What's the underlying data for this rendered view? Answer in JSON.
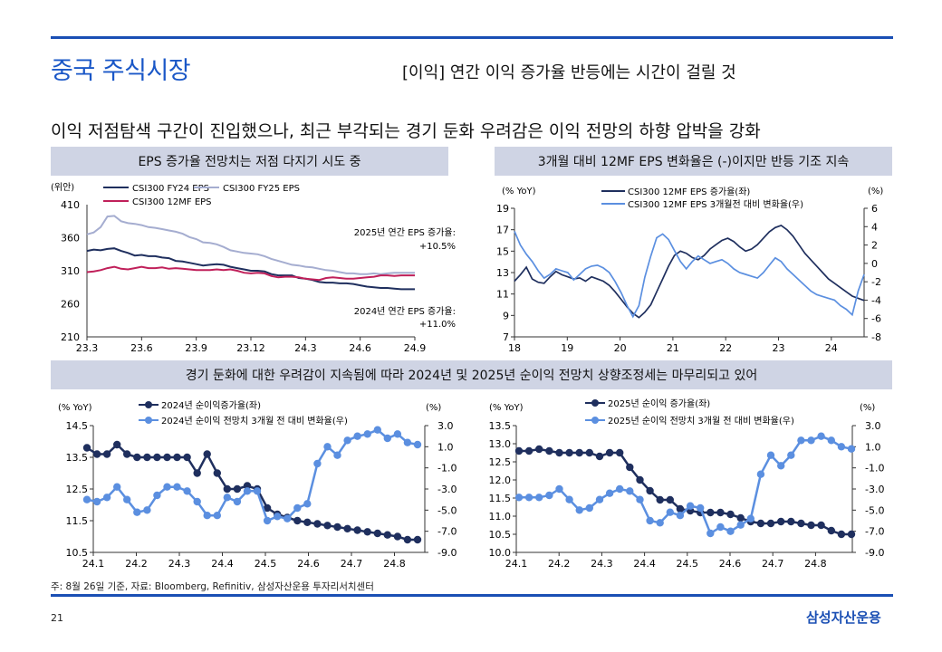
{
  "header": {
    "section_title": "중국 주식시장",
    "page_subtitle": "[이익] 연간 이익 증가율 반등에는 시간이 걸릴 것",
    "headline": "이익 저점탐색 구간이 진입했으나, 최근 부각되는 경기 둔화 우려감은 이익 전망의 하향 압박을 강화"
  },
  "panels": {
    "p1_title": "EPS 증가율 전망치는 저점 다지기 시도 중",
    "p2_title": "3개월 대비 12MF EPS 변화율은 (-)이지만 반등 기조 지속",
    "bottom_title": "경기 둔화에 대한 우려감이 지속됨에 따라 2024년 및 2025년 순이익 전망치 상향조정세는 마무리되고 있어"
  },
  "footer": {
    "footnote": "주: 8월 26일 기준, 자료: Bloomberg, Refinitiv, 삼성자산운용 투자리서치센터",
    "page_number": "21",
    "brand": "삼성자산운용"
  },
  "colors": {
    "rule": "#1a4fb4",
    "navy": "#1f2f5e",
    "lightblue": "#a5add0",
    "magenta": "#c0205a",
    "blue": "#5b8fe0"
  },
  "chart_data": [
    {
      "id": "c1",
      "type": "line",
      "unit_label": "(위안)",
      "ylim": [
        210,
        410
      ],
      "yticks": [
        210,
        260,
        310,
        360,
        410
      ],
      "xticks": [
        "23.3",
        "23.6",
        "23.9",
        "23.12",
        "24.3",
        "24.6",
        "24.9"
      ],
      "annotations": [
        "2025년 연간 EPS 증가율:",
        "+10.5%",
        "2024년 연간 EPS 증가율:",
        "+11.0%"
      ],
      "series": [
        {
          "name": "CSI300 FY24 EPS",
          "color": "#1f2f5e",
          "values": [
            340,
            342,
            341,
            343,
            344,
            340,
            337,
            333,
            334,
            332,
            332,
            330,
            329,
            325,
            324,
            322,
            320,
            318,
            319,
            320,
            319,
            316,
            314,
            312,
            310,
            310,
            309,
            305,
            303,
            303,
            303,
            299,
            298,
            296,
            293,
            292,
            292,
            291,
            291,
            290,
            288,
            286,
            285,
            284,
            284,
            283,
            282,
            282,
            282
          ]
        },
        {
          "name": "CSI300 FY25 EPS",
          "color": "#a5add0",
          "values": [
            365,
            368,
            376,
            392,
            393,
            385,
            382,
            381,
            379,
            376,
            375,
            373,
            371,
            369,
            366,
            361,
            358,
            353,
            352,
            350,
            346,
            341,
            339,
            337,
            336,
            335,
            332,
            328,
            325,
            322,
            319,
            318,
            316,
            315,
            313,
            311,
            310,
            308,
            306,
            306,
            305,
            305,
            306,
            305,
            306,
            307,
            307,
            307,
            307
          ]
        },
        {
          "name": "CSI300 12MF EPS",
          "color": "#c0205a",
          "values": [
            308,
            309,
            311,
            314,
            316,
            313,
            312,
            314,
            316,
            314,
            314,
            315,
            313,
            314,
            313,
            312,
            311,
            311,
            311,
            312,
            311,
            312,
            310,
            307,
            306,
            307,
            306,
            302,
            300,
            301,
            301,
            300,
            298,
            297,
            296,
            299,
            300,
            299,
            298,
            298,
            299,
            300,
            301,
            303,
            303,
            302,
            303,
            303,
            303
          ]
        }
      ]
    },
    {
      "id": "c2",
      "type": "line",
      "left_unit": "(% YoY)",
      "right_unit": "(%)",
      "ylim_left": [
        7,
        19
      ],
      "yticks_left": [
        7,
        9,
        11,
        13,
        15,
        17,
        19
      ],
      "ylim_right": [
        -8,
        6
      ],
      "yticks_right": [
        -8,
        -6,
        -4,
        -2,
        0,
        2,
        4,
        6
      ],
      "xticks": [
        "18",
        "19",
        "20",
        "21",
        "22",
        "23",
        "24"
      ],
      "series": [
        {
          "name": "CSI300 12MF EPS 증가율(좌)",
          "axis": "left",
          "color": "#1f2f5e",
          "values": [
            12.2,
            12.8,
            13.5,
            12.4,
            12.1,
            12.0,
            12.6,
            13.1,
            12.8,
            12.6,
            12.4,
            12.5,
            12.2,
            12.6,
            12.4,
            12.2,
            11.8,
            11.2,
            10.5,
            9.8,
            9.2,
            8.8,
            9.3,
            10.0,
            11.2,
            12.4,
            13.6,
            14.6,
            15.0,
            14.8,
            14.4,
            14.2,
            14.6,
            15.2,
            15.6,
            16.0,
            16.2,
            15.9,
            15.4,
            15.0,
            15.2,
            15.6,
            16.2,
            16.8,
            17.2,
            17.4,
            17.0,
            16.4,
            15.6,
            14.8,
            14.2,
            13.6,
            13.0,
            12.4,
            12.0,
            11.6,
            11.2,
            10.8,
            10.6,
            10.4
          ]
        },
        {
          "name": "CSI300 12MF EPS 3개월전 대비 변화율(우)",
          "axis": "right",
          "color": "#5b8fe0",
          "values": [
            3.5,
            2.0,
            1.0,
            0.2,
            -0.8,
            -1.6,
            -1.2,
            -0.6,
            -0.8,
            -1.0,
            -1.8,
            -1.2,
            -0.6,
            -0.3,
            -0.2,
            -0.5,
            -1.0,
            -2.0,
            -3.2,
            -4.6,
            -5.8,
            -4.6,
            -1.5,
            0.8,
            2.8,
            3.2,
            2.6,
            1.4,
            0.2,
            -0.6,
            0.2,
            0.8,
            0.4,
            0.0,
            0.2,
            0.4,
            0.0,
            -0.6,
            -1.0,
            -1.2,
            -1.4,
            -1.6,
            -1.0,
            -0.2,
            0.6,
            0.2,
            -0.6,
            -1.2,
            -1.8,
            -2.4,
            -3.0,
            -3.4,
            -3.6,
            -3.8,
            -4.0,
            -4.6,
            -5.0,
            -5.6,
            -3.0,
            -1.2
          ]
        }
      ]
    },
    {
      "id": "c3",
      "type": "line",
      "left_unit": "(% YoY)",
      "right_unit": "(%)",
      "ylim_left": [
        10.5,
        14.5
      ],
      "yticks_left": [
        "10.5",
        "11.5",
        "12.5",
        "13.5",
        "14.5"
      ],
      "ylim_right": [
        -9,
        3
      ],
      "yticks_right": [
        "-9.0",
        "-7.0",
        "-5.0",
        "-3.0",
        "-1.0",
        "1.0",
        "3.0"
      ],
      "xticks": [
        "24.1",
        "24.2",
        "24.3",
        "24.4",
        "24.5",
        "24.6",
        "24.7",
        "24.8"
      ],
      "series": [
        {
          "name": "2024년 순이익증가율(좌)",
          "axis": "left",
          "color": "#1f2f5e",
          "values": [
            13.8,
            13.6,
            13.6,
            13.9,
            13.6,
            13.5,
            13.5,
            13.5,
            13.5,
            13.5,
            13.5,
            13.0,
            13.6,
            13.0,
            12.5,
            12.5,
            12.6,
            12.5,
            11.9,
            11.7,
            11.6,
            11.5,
            11.45,
            11.4,
            11.35,
            11.3,
            11.25,
            11.2,
            11.15,
            11.1,
            11.05,
            11.0,
            10.9,
            10.9
          ]
        },
        {
          "name": "2024년 순이익 전망치 3개월 전 대비 변화율(우)",
          "axis": "right",
          "color": "#5b8fe0",
          "values": [
            -4.0,
            -4.2,
            -3.8,
            -2.8,
            -4.0,
            -5.2,
            -5.0,
            -3.6,
            -2.8,
            -2.8,
            -3.2,
            -4.2,
            -5.5,
            -5.5,
            -3.8,
            -4.2,
            -3.2,
            -3.2,
            -6.0,
            -5.6,
            -5.8,
            -4.8,
            -4.4,
            -0.6,
            1.0,
            0.2,
            1.6,
            2.0,
            2.2,
            2.6,
            1.8,
            2.2,
            1.4,
            1.2
          ]
        }
      ]
    },
    {
      "id": "c4",
      "type": "line",
      "left_unit": "(% YoY)",
      "right_unit": "(%)",
      "ylim_left": [
        10.0,
        13.5
      ],
      "yticks_left": [
        "10.0",
        "10.5",
        "11.0",
        "11.5",
        "12.0",
        "12.5",
        "13.0",
        "13.5"
      ],
      "ylim_right": [
        -9,
        3
      ],
      "yticks_right": [
        "-9.0",
        "-7.0",
        "-5.0",
        "-3.0",
        "-1.0",
        "1.0",
        "3.0"
      ],
      "xticks": [
        "24.1",
        "24.2",
        "24.3",
        "24.4",
        "24.5",
        "24.6",
        "24.7",
        "24.8"
      ],
      "series": [
        {
          "name": "2025년 순이익 증가율(좌)",
          "axis": "left",
          "color": "#1f2f5e",
          "values": [
            12.8,
            12.8,
            12.85,
            12.8,
            12.75,
            12.75,
            12.75,
            12.75,
            12.65,
            12.75,
            12.75,
            12.35,
            12.0,
            11.7,
            11.45,
            11.45,
            11.2,
            11.15,
            11.1,
            11.1,
            11.1,
            11.05,
            10.95,
            10.85,
            10.8,
            10.8,
            10.85,
            10.85,
            10.8,
            10.75,
            10.75,
            10.6,
            10.5,
            10.5
          ]
        },
        {
          "name": "2025년 순이익 전망치 3개월 전 대비 변화율(우)",
          "axis": "right",
          "color": "#5b8fe0",
          "values": [
            -3.8,
            -3.8,
            -3.8,
            -3.6,
            -3.0,
            -4.0,
            -5.0,
            -4.8,
            -4.0,
            -3.4,
            -3.0,
            -3.2,
            -4.0,
            -6.0,
            -6.2,
            -5.2,
            -5.5,
            -4.6,
            -4.8,
            -7.2,
            -6.6,
            -7.0,
            -6.4,
            -5.8,
            -1.6,
            0.2,
            -0.8,
            0.2,
            1.6,
            1.6,
            2.0,
            1.6,
            1.0,
            0.8
          ]
        }
      ]
    }
  ]
}
